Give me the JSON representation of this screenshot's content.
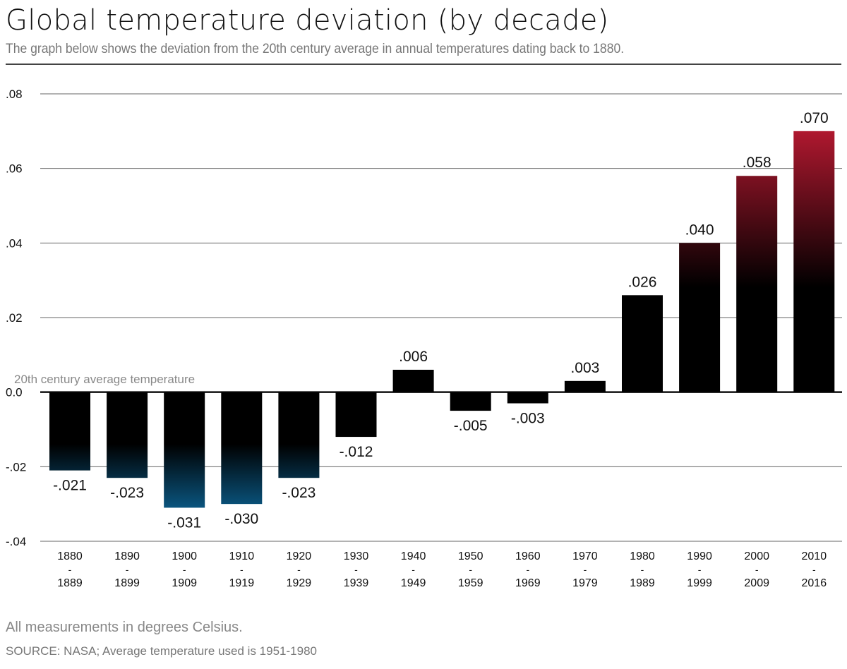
{
  "title": "Global temperature deviation (by decade)",
  "subtitle": "The graph below shows the deviation from the 20th century average in annual temperatures dating back to 1880.",
  "footer": {
    "note": "All measurements in degrees Celsius.",
    "source": "SOURCE: NASA; Average temperature used is 1951-1980"
  },
  "chart_data": {
    "type": "bar",
    "title": "Global temperature deviation (by decade)",
    "baseline_label": "20th century average temperature",
    "categories": [
      [
        "1880",
        "-",
        "1889"
      ],
      [
        "1890",
        "-",
        "1899"
      ],
      [
        "1900",
        "-",
        "1909"
      ],
      [
        "1910",
        "-",
        "1919"
      ],
      [
        "1920",
        "-",
        "1929"
      ],
      [
        "1930",
        "-",
        "1939"
      ],
      [
        "1940",
        "-",
        "1949"
      ],
      [
        "1950",
        "-",
        "1959"
      ],
      [
        "1960",
        "-",
        "1969"
      ],
      [
        "1970",
        "-",
        "1979"
      ],
      [
        "1980",
        "-",
        "1989"
      ],
      [
        "1990",
        "-",
        "1999"
      ],
      [
        "2000",
        "-",
        "2009"
      ],
      [
        "2010",
        "-",
        "2016"
      ]
    ],
    "values": [
      -0.021,
      -0.023,
      -0.031,
      -0.03,
      -0.023,
      -0.012,
      0.006,
      -0.005,
      -0.003,
      0.003,
      0.026,
      0.04,
      0.058,
      0.07
    ],
    "value_labels": [
      "-.021",
      "-.023",
      "-.031",
      "-.030",
      "-.023",
      "-.012",
      ".006",
      "-.005",
      "-.003",
      ".003",
      ".026",
      ".040",
      ".058",
      ".070"
    ],
    "ylim": [
      -0.04,
      0.08
    ],
    "yticks": [
      0.08,
      0.06,
      0.04,
      0.02,
      0.0,
      -0.02,
      -0.04
    ],
    "ytick_labels": [
      ".08",
      ".06",
      ".04",
      ".02",
      "0.0",
      "-.02",
      "-.04"
    ],
    "grid": true,
    "colors": {
      "positive_high": "#b0182f",
      "negative_low": "#0a557f",
      "base": "#000000",
      "grid": "#555555"
    }
  }
}
